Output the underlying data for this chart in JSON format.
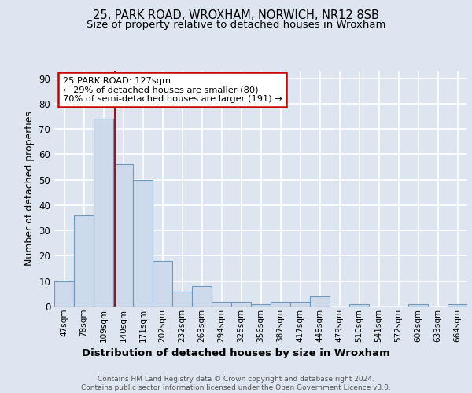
{
  "title1": "25, PARK ROAD, WROXHAM, NORWICH, NR12 8SB",
  "title2": "Size of property relative to detached houses in Wroxham",
  "xlabel": "Distribution of detached houses by size in Wroxham",
  "ylabel": "Number of detached properties",
  "bar_labels": [
    "47sqm",
    "78sqm",
    "109sqm",
    "140sqm",
    "171sqm",
    "202sqm",
    "232sqm",
    "263sqm",
    "294sqm",
    "325sqm",
    "356sqm",
    "387sqm",
    "417sqm",
    "448sqm",
    "479sqm",
    "510sqm",
    "541sqm",
    "572sqm",
    "602sqm",
    "633sqm",
    "664sqm"
  ],
  "bar_values": [
    10,
    36,
    74,
    56,
    50,
    18,
    6,
    8,
    2,
    2,
    1,
    2,
    2,
    4,
    0,
    1,
    0,
    0,
    1,
    0,
    1
  ],
  "bar_color": "#ccdaeb",
  "bar_edge_color": "#7099be",
  "annotation_box_text": "25 PARK ROAD: 127sqm\n← 29% of detached houses are smaller (80)\n70% of semi-detached houses are larger (191) →",
  "annotation_box_color": "white",
  "annotation_box_edge_color": "#cc0000",
  "vline_color": "#cc0000",
  "vline_x_bin": 2.58,
  "ylim": [
    0,
    93
  ],
  "yticks": [
    0,
    10,
    20,
    30,
    40,
    50,
    60,
    70,
    80,
    90
  ],
  "footer_text": "Contains HM Land Registry data © Crown copyright and database right 2024.\nContains public sector information licensed under the Open Government Licence v3.0.",
  "background_color": "#dde6f0",
  "plot_background_color": "#dde6f0",
  "grid_color": "white",
  "title1_fontsize": 10.5,
  "title2_fontsize": 9.5,
  "xlabel_fontsize": 9.5
}
